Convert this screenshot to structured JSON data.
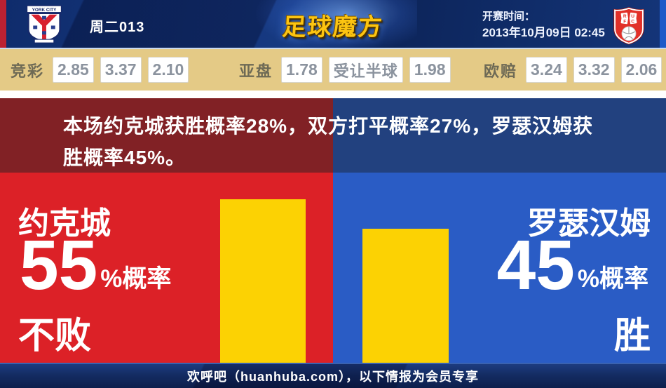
{
  "header": {
    "home_badge_title": "YORK CITY",
    "match_id": "周二013",
    "site_logo": "足球魔方",
    "kickoff_label": "开赛时间：",
    "kickoff_datetime": "2013年10月09日 02:45"
  },
  "odds_bar": {
    "sporttery": {
      "label": "竞彩",
      "values": [
        "2.85",
        "3.37",
        "2.10"
      ]
    },
    "asian_handicap": {
      "label": "亚盘",
      "home": "1.78",
      "line": "受让半球",
      "away": "1.98"
    },
    "european": {
      "label": "欧赔",
      "values": [
        "3.24",
        "3.32",
        "2.06"
      ]
    }
  },
  "banner": {
    "text": "本场约克城获胜概率28%，双方打平概率27%，罗瑟汉姆获胜概率45%。"
  },
  "left_panel": {
    "team": "约克城",
    "percent": "55",
    "percent_suffix": "%概率",
    "outcome": "不败"
  },
  "right_panel": {
    "team": "罗瑟汉姆",
    "percent": "45",
    "percent_suffix": "%概率",
    "outcome": "胜"
  },
  "footer": {
    "text": "欢呼吧（huanhuba.com），以下情报为会员专享"
  },
  "chart_data": {
    "type": "bar",
    "categories": [
      "约克城不败",
      "罗瑟汉姆胜"
    ],
    "values": [
      55,
      45
    ],
    "unit": "%概率",
    "bar_color": "#fcd203",
    "ylim": [
      0,
      100
    ],
    "title": "本场约克城获胜概率28%，双方打平概率27%，罗瑟汉姆获胜概率45%。",
    "annotations": {
      "home_win_prob": "28%",
      "draw_prob": "27%",
      "away_win_prob": "45%"
    }
  },
  "colors": {
    "home_red": "#dc2127",
    "away_blue": "#2a5cc5",
    "banner_red": "#812125",
    "banner_blue": "#22417f",
    "bar_yellow": "#fcd203",
    "odds_bg": "#e4ca86",
    "header_navy": "#122e6f",
    "footer_navy": "#13295c",
    "logo_gold": "#fcc411"
  }
}
